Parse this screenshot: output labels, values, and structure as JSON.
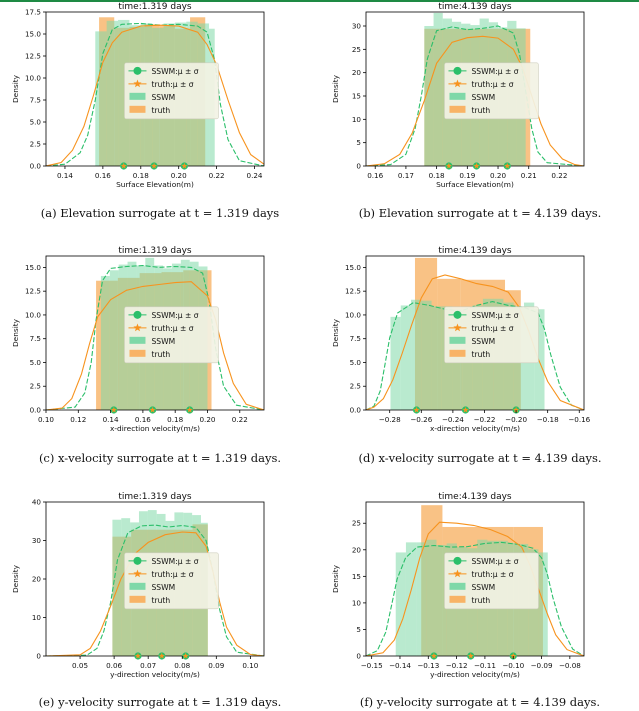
{
  "colors": {
    "sswm": "#2bbf6a",
    "sswm_bar": "#7fd8a8",
    "truth": "#f7931e",
    "truth_bar": "#f8b366",
    "legend_bg": "#f2f2e4"
  },
  "legend": {
    "sswm_marker": "SSWM:μ ± σ",
    "truth_marker": "truth:μ ± σ",
    "sswm_bar": "SSWM",
    "truth_bar": "truth"
  },
  "captions": [
    "(a) Elevation surrogate at t = 1.319 days",
    "(b) Elevation surrogate at t = 4.139 days.",
    "(c) x-velocity surrogate at t = 1.319 days.",
    "(d) x-velocity surrogate at t = 4.139 days.",
    "(e) y-velocity surrogate at t = 1.319 days.",
    "(f) y-velocity surrogate at t = 4.139 days."
  ],
  "chart_data": [
    {
      "type": "bar",
      "title": "time:1.319 days",
      "xlabel": "Surface Elevation(m)",
      "ylabel": "Density",
      "xlim": [
        0.13,
        0.245
      ],
      "ylim": [
        0,
        17.5
      ],
      "xticks": [
        0.14,
        0.16,
        0.18,
        0.2,
        0.22,
        0.24
      ],
      "xtick_labels": [
        "0.14",
        "0.16",
        "0.18",
        "0.20",
        "0.22",
        "0.24"
      ],
      "yticks": [
        0,
        2.5,
        5,
        7.5,
        10,
        12.5,
        15,
        17.5
      ],
      "ytick_labels": [
        "0.0",
        "2.5",
        "5.0",
        "7.5",
        "10.0",
        "12.5",
        "15.0",
        "17.5"
      ],
      "sswm_bins": [
        0.156,
        0.162,
        0.168,
        0.174,
        0.18,
        0.186,
        0.192,
        0.198,
        0.204,
        0.21,
        0.216,
        0.219
      ],
      "sswm_hist": [
        15.3,
        16.5,
        16.6,
        16.0,
        16.2,
        15.7,
        16.2,
        16.3,
        16.4,
        16.2,
        15.6
      ],
      "truth_bins": [
        0.158,
        0.166,
        0.174,
        0.182,
        0.19,
        0.198,
        0.206,
        0.214
      ],
      "truth_hist": [
        16.9,
        15.7,
        15.8,
        16.1,
        15.9,
        15.6,
        16.9
      ],
      "sswm_kde_x": [
        0.13,
        0.14,
        0.148,
        0.152,
        0.156,
        0.16,
        0.165,
        0.17,
        0.18,
        0.19,
        0.2,
        0.21,
        0.215,
        0.219,
        0.222,
        0.226,
        0.232,
        0.245
      ],
      "sswm_kde_y": [
        0,
        0.2,
        1.5,
        3.5,
        7.5,
        12.8,
        15.5,
        16.1,
        16.2,
        16.0,
        16.1,
        15.9,
        15.2,
        12,
        7,
        3,
        0.6,
        0
      ],
      "truth_kde_x": [
        0.13,
        0.138,
        0.144,
        0.15,
        0.155,
        0.16,
        0.165,
        0.17,
        0.18,
        0.19,
        0.2,
        0.21,
        0.215,
        0.22,
        0.226,
        0.232,
        0.238,
        0.245
      ],
      "truth_kde_y": [
        0,
        0.4,
        1.8,
        4.5,
        8.0,
        11.8,
        14.0,
        15.2,
        15.9,
        16.0,
        15.9,
        15.2,
        13.8,
        11.5,
        7.5,
        3.8,
        1.3,
        0.2
      ],
      "sswm_markers": [
        0.171,
        0.187,
        0.203
      ],
      "truth_markers": [
        0.171,
        0.187,
        0.203
      ]
    },
    {
      "type": "bar",
      "title": "time:4.139 days",
      "xlabel": "Surface Elevation(m)",
      "ylabel": "Density",
      "xlim": [
        0.157,
        0.228
      ],
      "ylim": [
        0,
        33
      ],
      "xticks": [
        0.16,
        0.17,
        0.18,
        0.19,
        0.2,
        0.21,
        0.22
      ],
      "xtick_labels": [
        "0.16",
        "0.17",
        "0.18",
        "0.19",
        "0.20",
        "0.21",
        "0.22"
      ],
      "yticks": [
        0,
        5,
        10,
        15,
        20,
        25,
        30
      ],
      "ytick_labels": [
        "0",
        "5",
        "10",
        "15",
        "20",
        "25",
        "30"
      ],
      "sswm_bins": [
        0.176,
        0.179,
        0.182,
        0.185,
        0.188,
        0.191,
        0.194,
        0.197,
        0.2,
        0.203,
        0.206,
        0.209
      ],
      "sswm_hist": [
        30.0,
        32.8,
        31.6,
        30.9,
        30.5,
        30.2,
        31.6,
        30.8,
        29.7,
        31.1,
        29.5
      ],
      "truth_bins": [
        0.176,
        0.2105
      ],
      "truth_hist": [
        29.4
      ],
      "sswm_kde_x": [
        0.157,
        0.165,
        0.17,
        0.173,
        0.175,
        0.177,
        0.18,
        0.185,
        0.19,
        0.195,
        0.2,
        0.205,
        0.207,
        0.209,
        0.211,
        0.213,
        0.216,
        0.228
      ],
      "sswm_kde_y": [
        0,
        0.3,
        2.5,
        8,
        15,
        23,
        29,
        29.8,
        29.2,
        29.5,
        30.0,
        28.5,
        24,
        16,
        8,
        3,
        0.7,
        0
      ],
      "truth_kde_x": [
        0.157,
        0.163,
        0.168,
        0.172,
        0.176,
        0.18,
        0.185,
        0.19,
        0.195,
        0.2,
        0.205,
        0.208,
        0.211,
        0.214,
        0.217,
        0.221,
        0.225,
        0.228
      ],
      "truth_kde_y": [
        0,
        0.5,
        2.5,
        7,
        14,
        22,
        26.5,
        27.5,
        27.8,
        27.4,
        25,
        21,
        15,
        9,
        4.5,
        1.5,
        0.3,
        0
      ],
      "sswm_markers": [
        0.184,
        0.193,
        0.203
      ],
      "truth_markers": [
        0.184,
        0.193,
        0.203
      ]
    },
    {
      "type": "bar",
      "title": "time:1.319 days",
      "xlabel": "x-direction velocity(m/s)",
      "ylabel": "Density",
      "xlim": [
        0.1,
        0.235
      ],
      "ylim": [
        0,
        16.2
      ],
      "xticks": [
        0.1,
        0.12,
        0.14,
        0.16,
        0.18,
        0.2,
        0.22
      ],
      "xtick_labels": [
        "0.10",
        "0.12",
        "0.14",
        "0.16",
        "0.18",
        "0.20",
        "0.22"
      ],
      "yticks": [
        0,
        2.5,
        5,
        7.5,
        10,
        12.5,
        15
      ],
      "ytick_labels": [
        "0.0",
        "2.5",
        "5.0",
        "7.5",
        "10.0",
        "12.5",
        "15.0"
      ],
      "sswm_bins": [
        0.134,
        0.1395,
        0.145,
        0.1505,
        0.156,
        0.1615,
        0.167,
        0.1725,
        0.178,
        0.1835,
        0.189,
        0.1945,
        0.2
      ],
      "sswm_hist": [
        14.1,
        14.7,
        15.3,
        15.6,
        15.2,
        16.0,
        15.2,
        14.9,
        15.4,
        15.8,
        15.6,
        15.1
      ],
      "truth_bins": [
        0.131,
        0.1445,
        0.158,
        0.1715,
        0.185,
        0.2025
      ],
      "truth_hist": [
        13.6,
        13.9,
        14.4,
        14.5,
        14.7
      ],
      "sswm_kde_x": [
        0.1,
        0.118,
        0.124,
        0.128,
        0.131,
        0.135,
        0.14,
        0.15,
        0.16,
        0.17,
        0.18,
        0.19,
        0.197,
        0.201,
        0.205,
        0.21,
        0.218,
        0.235
      ],
      "sswm_kde_y": [
        0,
        0.3,
        1.8,
        5,
        9.5,
        13.6,
        14.9,
        15.1,
        15.2,
        15.0,
        15.1,
        15.0,
        14.4,
        11.5,
        6.5,
        2.5,
        0.5,
        0
      ],
      "truth_kde_x": [
        0.1,
        0.11,
        0.116,
        0.122,
        0.127,
        0.132,
        0.14,
        0.15,
        0.16,
        0.17,
        0.18,
        0.19,
        0.2,
        0.205,
        0.21,
        0.216,
        0.224,
        0.235
      ],
      "truth_kde_y": [
        0,
        0.2,
        1.2,
        3.8,
        7.0,
        9.8,
        11.6,
        12.6,
        13.0,
        13.2,
        13.4,
        13.5,
        12.0,
        9.5,
        6.0,
        2.8,
        0.6,
        0
      ],
      "sswm_markers": [
        0.142,
        0.166,
        0.189
      ],
      "truth_markers": [
        0.142,
        0.166,
        0.189
      ]
    },
    {
      "type": "bar",
      "title": "time:4.139 days",
      "xlabel": "x-direction velocity(m/s)",
      "ylabel": "Density",
      "xlim": [
        -0.295,
        -0.157
      ],
      "ylim": [
        0,
        16.2
      ],
      "xticks": [
        -0.28,
        -0.26,
        -0.24,
        -0.22,
        -0.2,
        -0.18,
        -0.16
      ],
      "xtick_labels": [
        "−0.28",
        "−0.26",
        "−0.24",
        "−0.22",
        "−0.20",
        "−0.18",
        "−0.16"
      ],
      "yticks": [
        0,
        2.5,
        5,
        7.5,
        10,
        12.5,
        15
      ],
      "ytick_labels": [
        "0.0",
        "2.5",
        "5.0",
        "7.5",
        "10.0",
        "12.5",
        "15.0"
      ],
      "sswm_bins": [
        -0.2795,
        -0.273,
        -0.2665,
        -0.26,
        -0.2535,
        -0.247,
        -0.2405,
        -0.234,
        -0.2275,
        -0.221,
        -0.2145,
        -0.208,
        -0.2015,
        -0.195,
        -0.1885,
        -0.182
      ],
      "sswm_hist": [
        9.8,
        11.0,
        11.6,
        11.5,
        10.9,
        10.9,
        10.6,
        10.5,
        11.0,
        11.7,
        11.7,
        11.3,
        10.9,
        11.3,
        10.6
      ],
      "truth_bins": [
        -0.264,
        -0.25,
        -0.235,
        -0.22,
        -0.207,
        -0.197
      ],
      "truth_hist": [
        16.0,
        13.8,
        13.7,
        13.7,
        12.6
      ],
      "sswm_kde_x": [
        -0.295,
        -0.29,
        -0.286,
        -0.283,
        -0.28,
        -0.275,
        -0.265,
        -0.255,
        -0.245,
        -0.235,
        -0.225,
        -0.215,
        -0.205,
        -0.195,
        -0.186,
        -0.182,
        -0.178,
        -0.172,
        -0.165,
        -0.157
      ],
      "sswm_kde_y": [
        0,
        0.4,
        2.0,
        4.8,
        7.6,
        10.2,
        11.3,
        11.0,
        10.6,
        10.4,
        11.0,
        11.4,
        11.0,
        10.8,
        10.2,
        8.5,
        5.8,
        2.4,
        0.5,
        0
      ],
      "truth_kde_x": [
        -0.295,
        -0.29,
        -0.284,
        -0.278,
        -0.272,
        -0.266,
        -0.26,
        -0.253,
        -0.245,
        -0.235,
        -0.225,
        -0.215,
        -0.205,
        -0.198,
        -0.192,
        -0.186,
        -0.18,
        -0.172,
        -0.157
      ],
      "truth_kde_y": [
        0,
        0.3,
        1.2,
        3.2,
        6.0,
        9.0,
        11.8,
        13.8,
        14.2,
        13.8,
        13.3,
        13.0,
        12.4,
        10.8,
        8.3,
        5.4,
        3.0,
        1.0,
        0
      ],
      "sswm_markers": [
        -0.263,
        -0.232,
        -0.2
      ],
      "truth_markers": [
        -0.263,
        -0.232,
        -0.2
      ]
    },
    {
      "type": "bar",
      "title": "time:1.319 days",
      "xlabel": "y-direction velocity(m/s)",
      "ylabel": "Density",
      "xlim": [
        0.04,
        0.104
      ],
      "ylim": [
        0,
        40
      ],
      "xticks": [
        0.05,
        0.06,
        0.07,
        0.08,
        0.09,
        0.1
      ],
      "xtick_labels": [
        "0.05",
        "0.06",
        "0.07",
        "0.08",
        "0.09",
        "0.10"
      ],
      "yticks": [
        0,
        10,
        20,
        30,
        40
      ],
      "ytick_labels": [
        "0",
        "10",
        "20",
        "30",
        "40"
      ],
      "sswm_bins": [
        0.0595,
        0.0621,
        0.0647,
        0.0673,
        0.0699,
        0.0725,
        0.0751,
        0.0777,
        0.0803,
        0.0829,
        0.0855,
        0.0875
      ],
      "sswm_hist": [
        35.4,
        35.8,
        34.7,
        37.6,
        37.9,
        36.9,
        35.1,
        37.3,
        37.2,
        36.6,
        34.6
      ],
      "truth_bins": [
        0.0595,
        0.065,
        0.083,
        0.0875
      ],
      "truth_hist": [
        31.0,
        32.8,
        34.2
      ],
      "sswm_kde_x": [
        0.04,
        0.052,
        0.055,
        0.057,
        0.059,
        0.061,
        0.064,
        0.068,
        0.072,
        0.076,
        0.08,
        0.084,
        0.087,
        0.089,
        0.091,
        0.093,
        0.096,
        0.104
      ],
      "sswm_kde_y": [
        0,
        0.2,
        2.0,
        6.5,
        14,
        25,
        32,
        33.8,
        34.0,
        33.5,
        33.9,
        33.4,
        30,
        22,
        12,
        5,
        1,
        0
      ],
      "truth_kde_x": [
        0.04,
        0.05,
        0.053,
        0.056,
        0.059,
        0.062,
        0.066,
        0.07,
        0.075,
        0.08,
        0.084,
        0.087,
        0.089,
        0.091,
        0.093,
        0.096,
        0.1,
        0.104
      ],
      "truth_kde_y": [
        0,
        0.3,
        2.0,
        6.5,
        13,
        20,
        26.5,
        29.5,
        31.5,
        32.2,
        32.0,
        28.5,
        22,
        14,
        7.5,
        2.8,
        0.4,
        0
      ],
      "sswm_markers": [
        0.067,
        0.074,
        0.081
      ],
      "truth_markers": [
        0.067,
        0.074,
        0.081
      ]
    },
    {
      "type": "bar",
      "title": "time:4.139 days",
      "xlabel": "y-direction velocity(m/s)",
      "ylabel": "Density",
      "xlim": [
        -0.152,
        -0.075
      ],
      "ylim": [
        0,
        29
      ],
      "xticks": [
        -0.15,
        -0.14,
        -0.13,
        -0.12,
        -0.11,
        -0.1,
        -0.09,
        -0.08
      ],
      "xtick_labels": [
        "−0.15",
        "−0.14",
        "−0.13",
        "−0.12",
        "−0.11",
        "−0.10",
        "−0.09",
        "−0.08"
      ],
      "yticks": [
        0,
        5,
        10,
        15,
        20,
        25
      ],
      "ytick_labels": [
        "0",
        "5",
        "10",
        "15",
        "20",
        "25"
      ],
      "sswm_bins": [
        -0.1415,
        -0.1379,
        -0.1343,
        -0.1307,
        -0.1271,
        -0.1235,
        -0.1199,
        -0.1163,
        -0.1127,
        -0.1091,
        -0.1055,
        -0.1019,
        -0.0983,
        -0.0947,
        -0.0911,
        -0.0878
      ],
      "sswm_hist": [
        19.5,
        21.4,
        21.4,
        21.9,
        20.9,
        21.2,
        20.5,
        20.3,
        21.9,
        21.7,
        21.7,
        21.3,
        21.1,
        20.1,
        19.5
      ],
      "truth_bins": [
        -0.1325,
        -0.125,
        -0.1,
        -0.0895
      ],
      "truth_hist": [
        28.4,
        24.3,
        24.3
      ],
      "sswm_kde_x": [
        -0.152,
        -0.148,
        -0.145,
        -0.143,
        -0.141,
        -0.138,
        -0.134,
        -0.128,
        -0.122,
        -0.116,
        -0.11,
        -0.104,
        -0.098,
        -0.093,
        -0.09,
        -0.088,
        -0.086,
        -0.083,
        -0.079,
        -0.075
      ],
      "sswm_kde_y": [
        0,
        1.0,
        4.5,
        9.5,
        14.5,
        18.5,
        20.5,
        20.8,
        20.5,
        20.6,
        21.2,
        21.4,
        21.0,
        20.3,
        18.5,
        15.5,
        11,
        5.5,
        1.3,
        0
      ],
      "truth_kde_x": [
        -0.152,
        -0.146,
        -0.142,
        -0.139,
        -0.136,
        -0.133,
        -0.13,
        -0.126,
        -0.12,
        -0.114,
        -0.108,
        -0.102,
        -0.097,
        -0.094,
        -0.091,
        -0.088,
        -0.085,
        -0.081,
        -0.075
      ],
      "truth_kde_y": [
        0,
        0.6,
        3.0,
        7.0,
        12.5,
        18.5,
        23.0,
        25.2,
        25.0,
        24.6,
        23.8,
        22.5,
        20.5,
        17.0,
        12.5,
        8.0,
        4.0,
        1.2,
        0
      ],
      "sswm_markers": [
        -0.128,
        -0.115,
        -0.1
      ],
      "truth_markers": [
        -0.128,
        -0.115,
        -0.1
      ]
    }
  ]
}
